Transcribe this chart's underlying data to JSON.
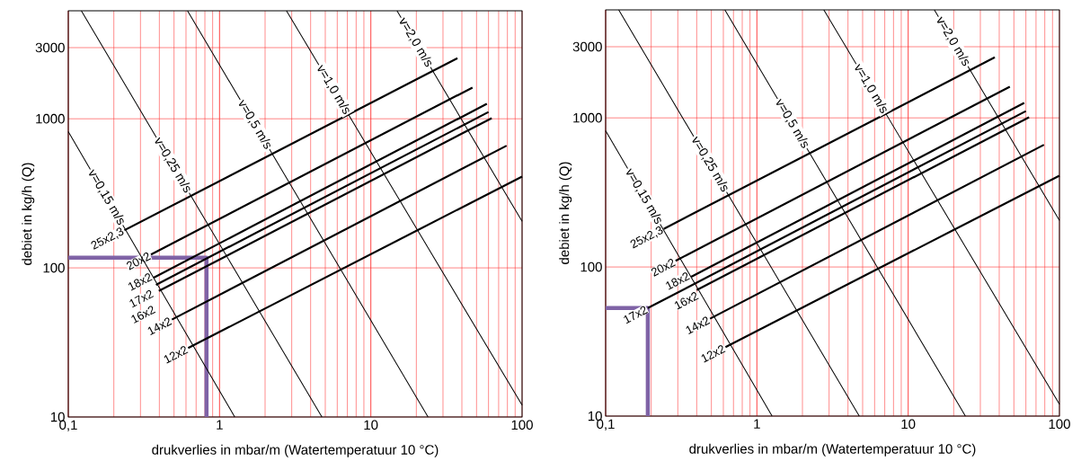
{
  "chart_data": [
    {
      "type": "line",
      "xlabel": "drukverlies in mbar/m (Watertemperatuur 10 °C)",
      "ylabel": "debiet in kg/h (Q)",
      "log": "xy",
      "grid": true,
      "xlim": [
        0.1,
        100
      ],
      "ylim": [
        10,
        5300
      ],
      "xticks": [
        {
          "value": 0.1,
          "label": "0,1"
        },
        1,
        10,
        100
      ],
      "yticks": [
        10,
        100,
        1000,
        3000
      ],
      "series": [
        {
          "name": "25x2,3",
          "color": "#000000",
          "x": [
            0.235,
            37.4
          ],
          "values": [
            179,
            2550
          ]
        },
        {
          "name": "20x2",
          "color": "#000000",
          "x": [
            0.352,
            47
          ],
          "values": [
            123,
            1620
          ]
        },
        {
          "name": "18x2",
          "color": "#000000",
          "x": [
            0.367,
            58.5
          ],
          "values": [
            86,
            1260
          ]
        },
        {
          "name": "17x2",
          "color": "#000000",
          "x": [
            0.38,
            60
          ],
          "values": [
            77,
            1110
          ]
        },
        {
          "name": "16x2",
          "color": "#000000",
          "x": [
            0.397,
            63
          ],
          "values": [
            70,
            1010
          ]
        },
        {
          "name": "14x2",
          "color": "#000000",
          "x": [
            0.484,
            79
          ],
          "values": [
            45,
            660
          ]
        },
        {
          "name": "12x2",
          "color": "#000000",
          "x": [
            0.62,
            100
          ],
          "values": [
            29,
            410
          ]
        },
        {
          "name": "v=0,15 m/s",
          "color": "#000000",
          "x": [
            0.1,
            1.26
          ],
          "values": [
            820,
            10
          ]
        },
        {
          "name": "v=0,25 m/s",
          "color": "#000000",
          "x": [
            0.122,
            4.75
          ],
          "values": [
            5300,
            10
          ]
        },
        {
          "name": "v=0,5 m/s",
          "color": "#000000",
          "x": [
            0.614,
            23.9
          ],
          "values": [
            5300,
            10
          ]
        },
        {
          "name": "v=1,0 m/s",
          "color": "#000000",
          "x": [
            2.77,
            100
          ],
          "values": [
            5300,
            12
          ]
        },
        {
          "name": "v=2,0 m/s",
          "color": "#000000",
          "x": [
            14.9,
            100
          ],
          "values": [
            5300,
            205
          ]
        },
        {
          "color": "#7f63a6",
          "x": [
            0.1,
            0.82,
            0.82
          ],
          "values": [
            117,
            117,
            10
          ]
        }
      ]
    },
    {
      "type": "line",
      "xlabel": "drukverlies in mbar/m (Watertemperatuur 10 °C)",
      "ylabel": "debiet in kg/h (Q)",
      "log": "xy",
      "grid": true,
      "xlim": [
        0.1,
        100
      ],
      "ylim": [
        10,
        5300
      ],
      "xticks": [
        {
          "value": 0.1,
          "label": "0,1"
        },
        1,
        10,
        100
      ],
      "yticks": [
        10,
        100,
        1000,
        3000
      ],
      "series": [
        {
          "name": "25x2,3",
          "color": "#000000",
          "x": [
            0.242,
            37.4
          ],
          "values": [
            180,
            2550
          ]
        },
        {
          "name": "20x2",
          "color": "#000000",
          "x": [
            0.29,
            47
          ],
          "values": [
            110,
            1620
          ]
        },
        {
          "name": "18x2",
          "color": "#000000",
          "x": [
            0.368,
            58.5
          ],
          "values": [
            86,
            1260
          ]
        },
        {
          "name": "17x2",
          "color": "#000000",
          "x": [
            0.19,
            60
          ],
          "values": [
            53,
            1110
          ]
        },
        {
          "name": "16x2",
          "color": "#000000",
          "x": [
            0.4,
            63
          ],
          "values": [
            70,
            1010
          ]
        },
        {
          "name": "14x2",
          "color": "#000000",
          "x": [
            0.49,
            79
          ],
          "values": [
            45,
            660
          ]
        },
        {
          "name": "12x2",
          "color": "#000000",
          "x": [
            0.62,
            100
          ],
          "values": [
            29,
            410
          ]
        },
        {
          "name": "v=0,15 m/s",
          "color": "#000000",
          "x": [
            0.1,
            1.26
          ],
          "values": [
            820,
            10
          ]
        },
        {
          "name": "v=0,25 m/s",
          "color": "#000000",
          "x": [
            0.122,
            4.75
          ],
          "values": [
            5300,
            10
          ]
        },
        {
          "name": "v=0,5 m/s",
          "color": "#000000",
          "x": [
            0.614,
            23.9
          ],
          "values": [
            5300,
            10
          ]
        },
        {
          "name": "v=1,0 m/s",
          "color": "#000000",
          "x": [
            2.77,
            100
          ],
          "values": [
            5300,
            12
          ]
        },
        {
          "name": "v=2,0 m/s",
          "color": "#000000",
          "x": [
            14.9,
            100
          ],
          "values": [
            5300,
            205
          ]
        },
        {
          "color": "#7f63a6",
          "x": [
            0.1,
            0.19,
            0.19
          ],
          "values": [
            53,
            53,
            10
          ]
        }
      ]
    }
  ]
}
